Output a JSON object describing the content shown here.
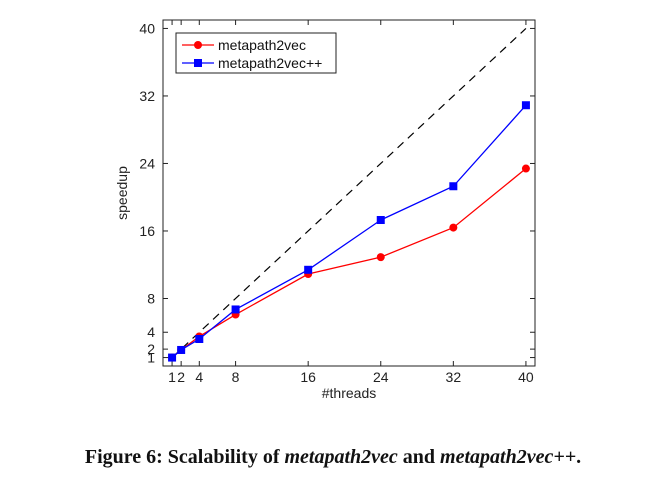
{
  "chart_data": {
    "type": "line",
    "xlabel": "#threads",
    "ylabel": "speedup",
    "xlim": [
      0,
      41
    ],
    "ylim": [
      0,
      41
    ],
    "xticks": [
      1,
      2,
      4,
      8,
      16,
      24,
      32,
      40
    ],
    "yticks": [
      1,
      2,
      4,
      8,
      16,
      24,
      32,
      40
    ],
    "grid": false,
    "legend_position": "top-left",
    "reference_line": {
      "style": "dashed",
      "color": "#000000",
      "x": [
        1,
        40
      ],
      "y": [
        1,
        40
      ]
    },
    "series": [
      {
        "name": "metapath2vec",
        "color": "#ff0000",
        "marker": "circle",
        "x": [
          1,
          2,
          4,
          8,
          16,
          24,
          32,
          40
        ],
        "y": [
          1,
          1.9,
          3.5,
          6.1,
          10.9,
          12.9,
          16.4,
          23.4
        ]
      },
      {
        "name": "metapath2vec++",
        "color": "#0000ff",
        "marker": "square",
        "x": [
          1,
          2,
          4,
          8,
          16,
          24,
          32,
          40
        ],
        "y": [
          1,
          1.9,
          3.2,
          6.7,
          11.4,
          17.3,
          21.3,
          30.9
        ]
      }
    ]
  },
  "caption": {
    "prefix": "Figure 6: Scalability of ",
    "name1": "metapath2vec",
    "middle": " and ",
    "name2": "metapath2vec++",
    "suffix": "."
  }
}
